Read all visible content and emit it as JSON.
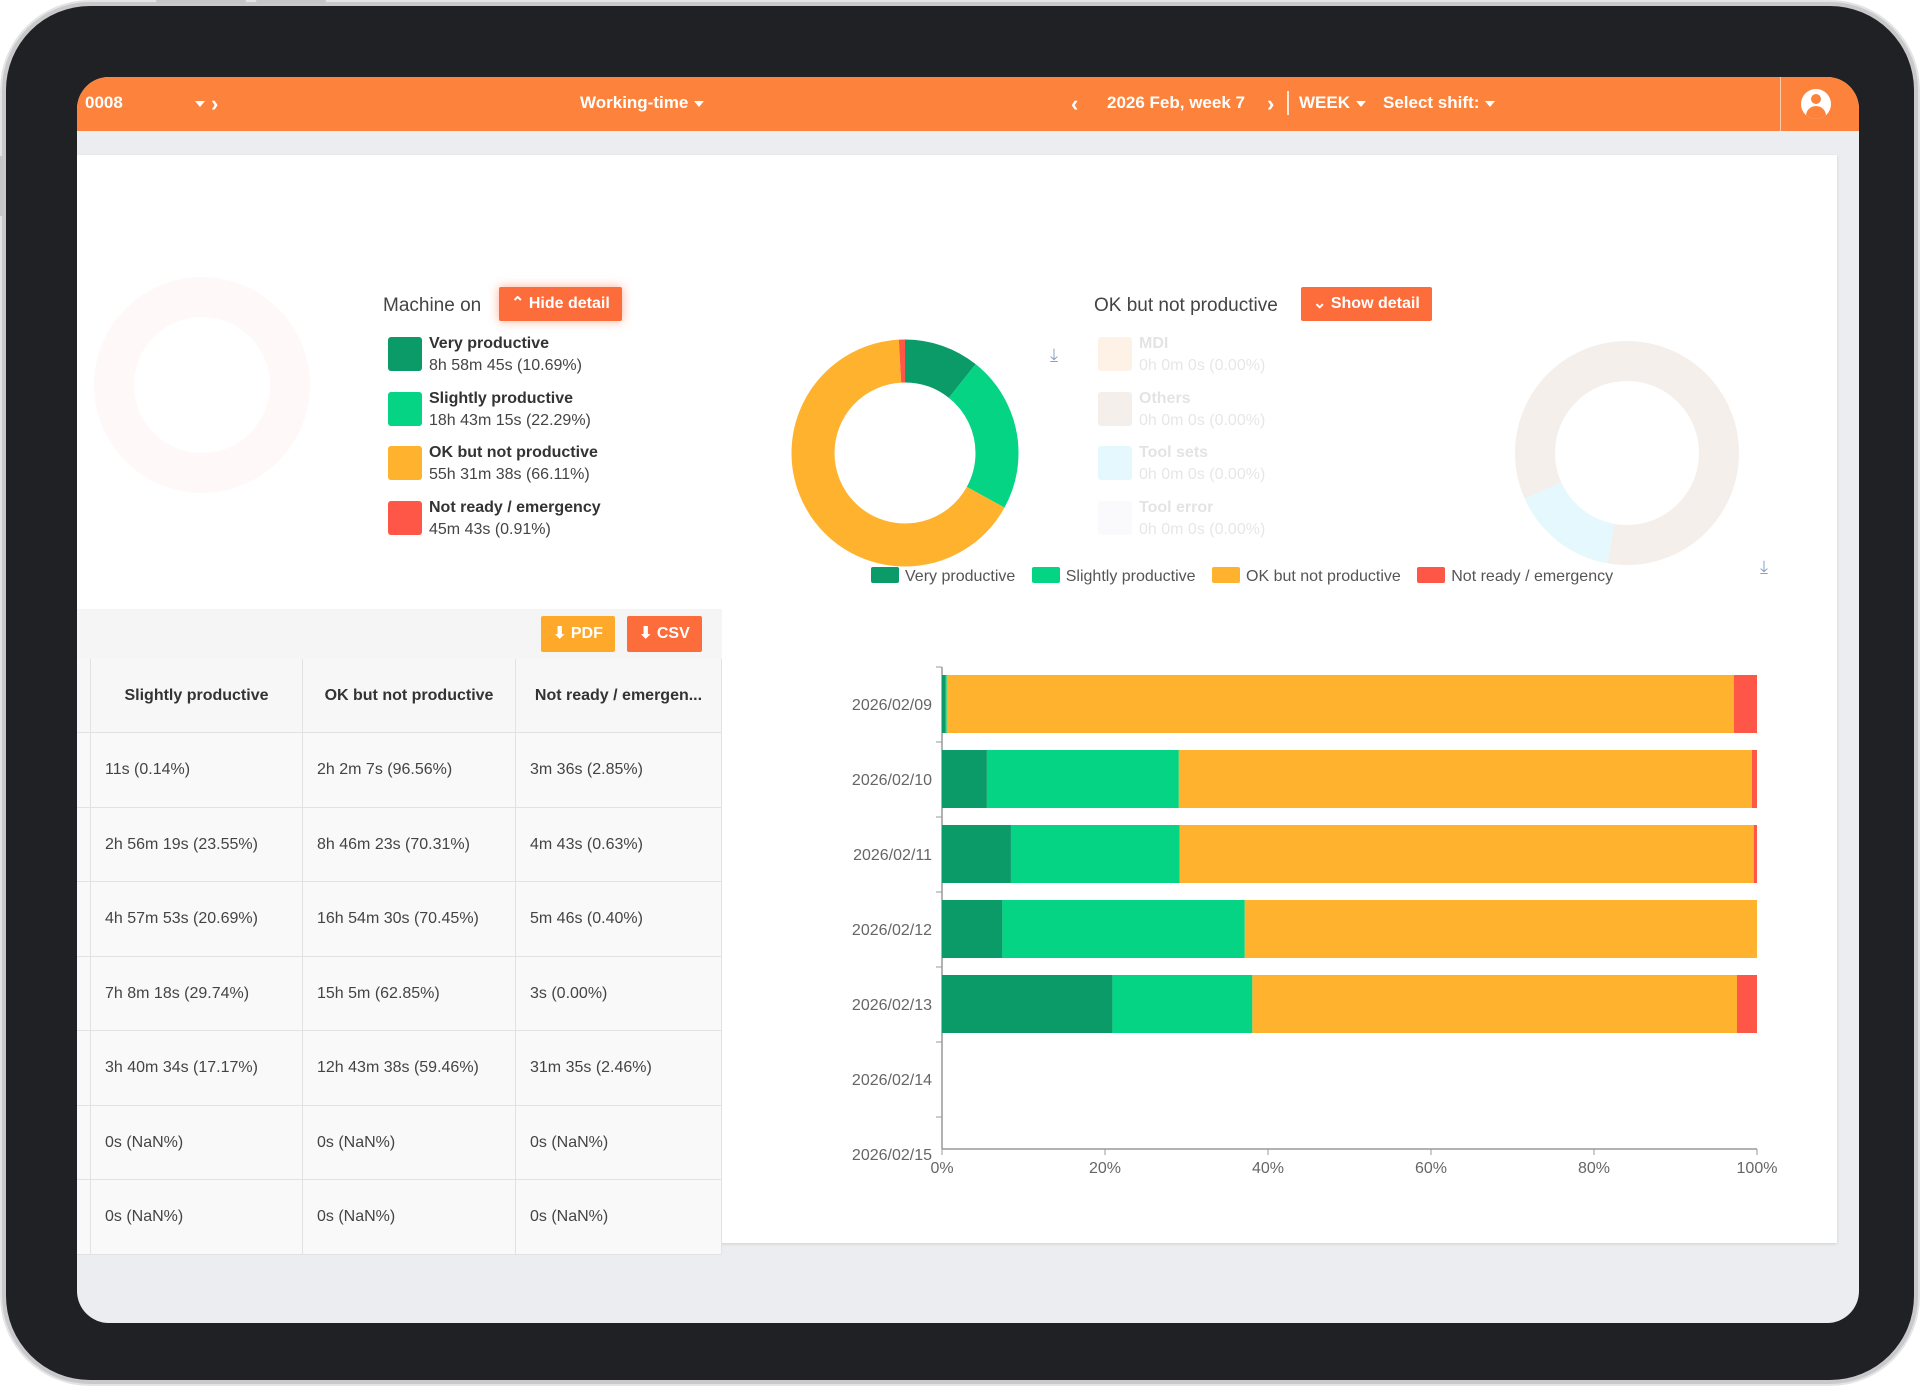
{
  "topbar": {
    "machine_id": "0008",
    "view_label": "Working-time",
    "period_label": "2026 Feb, week 7",
    "range_label": "WEEK",
    "shift_label": "Select shift:"
  },
  "machine_on": {
    "title": "Machine on",
    "toggle_label": "Hide detail",
    "legend": [
      {
        "name": "Very productive",
        "value": "8h 58m 45s (10.69%)",
        "color": "#0a9b69"
      },
      {
        "name": "Slightly productive",
        "value": "18h 43m 15s (22.29%)",
        "color": "#04d484"
      },
      {
        "name": "OK but not productive",
        "value": "55h 31m 38s (66.11%)",
        "color": "#feb22d"
      },
      {
        "name": "Not ready / emergency",
        "value": "45m 43s (0.91%)",
        "color": "#fe5747"
      }
    ]
  },
  "ok_not_productive": {
    "title": "OK but not productive",
    "toggle_label": "Show detail",
    "legend": [
      {
        "name": "MDI",
        "value": "0h 0m 0s (0.00%)",
        "color": "#fea34a"
      },
      {
        "name": "Others",
        "value": "0h 0m 0s (0.00%)",
        "color": "#b0886e"
      },
      {
        "name": "Tool sets",
        "value": "0h 0m 0s (0.00%)",
        "color": "#3fd0f0"
      },
      {
        "name": "Tool error",
        "value": "0h 0m 0s (0.00%)",
        "color": "#dfd4e6"
      }
    ]
  },
  "table": {
    "pdf_label": "PDF",
    "csv_label": "CSV",
    "columns": [
      "Slightly productive",
      "OK but not productive",
      "Not ready / emergen..."
    ],
    "rows": [
      [
        "11s (0.14%)",
        "2h 2m 7s (96.56%)",
        "3m 36s (2.85%)"
      ],
      [
        "2h 56m 19s (23.55%)",
        "8h 46m 23s (70.31%)",
        "4m 43s (0.63%)"
      ],
      [
        "4h 57m 53s (20.69%)",
        "16h 54m 30s (70.45%)",
        "5m 46s (0.40%)"
      ],
      [
        "7h 8m 18s (29.74%)",
        "15h 5m (62.85%)",
        "3s (0.00%)"
      ],
      [
        "3h 40m 34s (17.17%)",
        "12h 43m 38s (59.46%)",
        "31m 35s (2.46%)"
      ],
      [
        "0s (NaN%)",
        "0s (NaN%)",
        "0s (NaN%)"
      ],
      [
        "0s (NaN%)",
        "0s (NaN%)",
        "0s (NaN%)"
      ]
    ]
  },
  "chart_data": {
    "type": "bar",
    "orientation": "horizontal",
    "stacked": true,
    "categories": [
      "2026/02/09",
      "2026/02/10",
      "2026/02/11",
      "2026/02/12",
      "2026/02/13",
      "2026/02/14",
      "2026/02/15"
    ],
    "series": [
      {
        "name": "Very productive",
        "color": "#0a9b69",
        "values": [
          0.45,
          5.51,
          8.46,
          7.41,
          20.91,
          0,
          0
        ]
      },
      {
        "name": "Slightly productive",
        "color": "#04d484",
        "values": [
          0.14,
          23.55,
          20.69,
          29.74,
          17.17,
          0,
          0
        ]
      },
      {
        "name": "OK but not productive",
        "color": "#feb22d",
        "values": [
          96.56,
          70.31,
          70.45,
          62.85,
          59.46,
          0,
          0
        ]
      },
      {
        "name": "Not ready / emergency",
        "color": "#fe5747",
        "values": [
          2.85,
          0.63,
          0.4,
          0.0,
          2.46,
          0,
          0
        ]
      }
    ],
    "xlim": [
      0,
      100
    ],
    "x_ticks": [
      "0%",
      "20%",
      "40%",
      "60%",
      "80%",
      "100%"
    ],
    "legend_position": "top",
    "grid": false
  }
}
